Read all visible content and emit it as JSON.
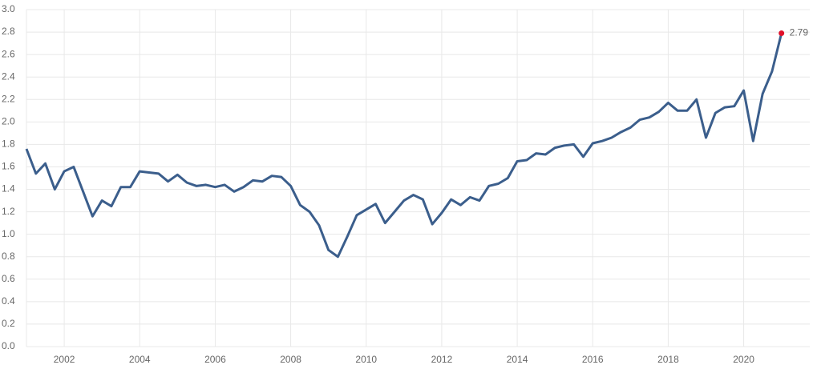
{
  "chart_data": {
    "type": "line",
    "x": [
      2001,
      2001.25,
      2001.5,
      2001.75,
      2002,
      2002.25,
      2002.5,
      2002.75,
      2003,
      2003.25,
      2003.5,
      2003.75,
      2004,
      2004.25,
      2004.5,
      2004.75,
      2005,
      2005.25,
      2005.5,
      2005.75,
      2006,
      2006.25,
      2006.5,
      2006.75,
      2007,
      2007.25,
      2007.5,
      2007.75,
      2008,
      2008.25,
      2008.5,
      2008.75,
      2009,
      2009.25,
      2009.5,
      2009.75,
      2010,
      2010.25,
      2010.5,
      2010.75,
      2011,
      2011.25,
      2011.5,
      2011.75,
      2012,
      2012.25,
      2012.5,
      2012.75,
      2013,
      2013.25,
      2013.5,
      2013.75,
      2014,
      2014.25,
      2014.5,
      2014.75,
      2015,
      2015.25,
      2015.5,
      2015.75,
      2016,
      2016.25,
      2016.5,
      2016.75,
      2017,
      2017.25,
      2017.5,
      2017.75,
      2018,
      2018.25,
      2018.5,
      2018.75,
      2019,
      2019.25,
      2019.5,
      2019.75,
      2020,
      2020.25,
      2020.5,
      2020.75,
      2021
    ],
    "series": [
      {
        "color": "#3b5e8c",
        "marker_color": "#e0102a",
        "values": [
          1.76,
          1.54,
          1.63,
          1.4,
          1.56,
          1.6,
          1.38,
          1.16,
          1.3,
          1.25,
          1.42,
          1.42,
          1.56,
          1.55,
          1.54,
          1.47,
          1.53,
          1.46,
          1.43,
          1.44,
          1.42,
          1.44,
          1.38,
          1.42,
          1.48,
          1.47,
          1.52,
          1.51,
          1.43,
          1.26,
          1.2,
          1.08,
          0.86,
          0.8,
          0.98,
          1.17,
          1.22,
          1.27,
          1.1,
          1.2,
          1.3,
          1.35,
          1.31,
          1.09,
          1.19,
          1.31,
          1.26,
          1.33,
          1.3,
          1.43,
          1.45,
          1.5,
          1.65,
          1.66,
          1.72,
          1.71,
          1.77,
          1.79,
          1.8,
          1.69,
          1.81,
          1.83,
          1.86,
          1.91,
          1.95,
          2.02,
          2.04,
          2.09,
          2.17,
          2.1,
          2.1,
          2.2,
          1.86,
          2.08,
          2.13,
          2.14,
          2.28,
          1.83,
          2.25,
          2.45,
          2.79
        ]
      }
    ],
    "xlim": [
      2001,
      2021.75
    ],
    "xticks": [
      2002,
      2004,
      2006,
      2008,
      2010,
      2012,
      2014,
      2016,
      2018,
      2020
    ],
    "ylim": [
      0,
      3
    ],
    "yticks": [
      {
        "value": 0,
        "label": "0.0"
      },
      {
        "value": 0.2,
        "label": "0.2"
      },
      {
        "value": 0.4,
        "label": "0.4"
      },
      {
        "value": 0.6,
        "label": "0.6"
      },
      {
        "value": 0.8,
        "label": "0.8"
      },
      {
        "value": 1,
        "label": "1.0"
      },
      {
        "value": 1.2,
        "label": "1.2"
      },
      {
        "value": 1.4,
        "label": "1.4"
      },
      {
        "value": 1.6,
        "label": "1.6"
      },
      {
        "value": 1.8,
        "label": "1.8"
      },
      {
        "value": 2,
        "label": "2.0"
      },
      {
        "value": 2.2,
        "label": "2.2"
      },
      {
        "value": 2.4,
        "label": "2.4"
      },
      {
        "value": 2.6,
        "label": "2.6"
      },
      {
        "value": 2.8,
        "label": "2.8"
      },
      {
        "value": 3,
        "label": "3.0"
      }
    ],
    "grid": true
  }
}
